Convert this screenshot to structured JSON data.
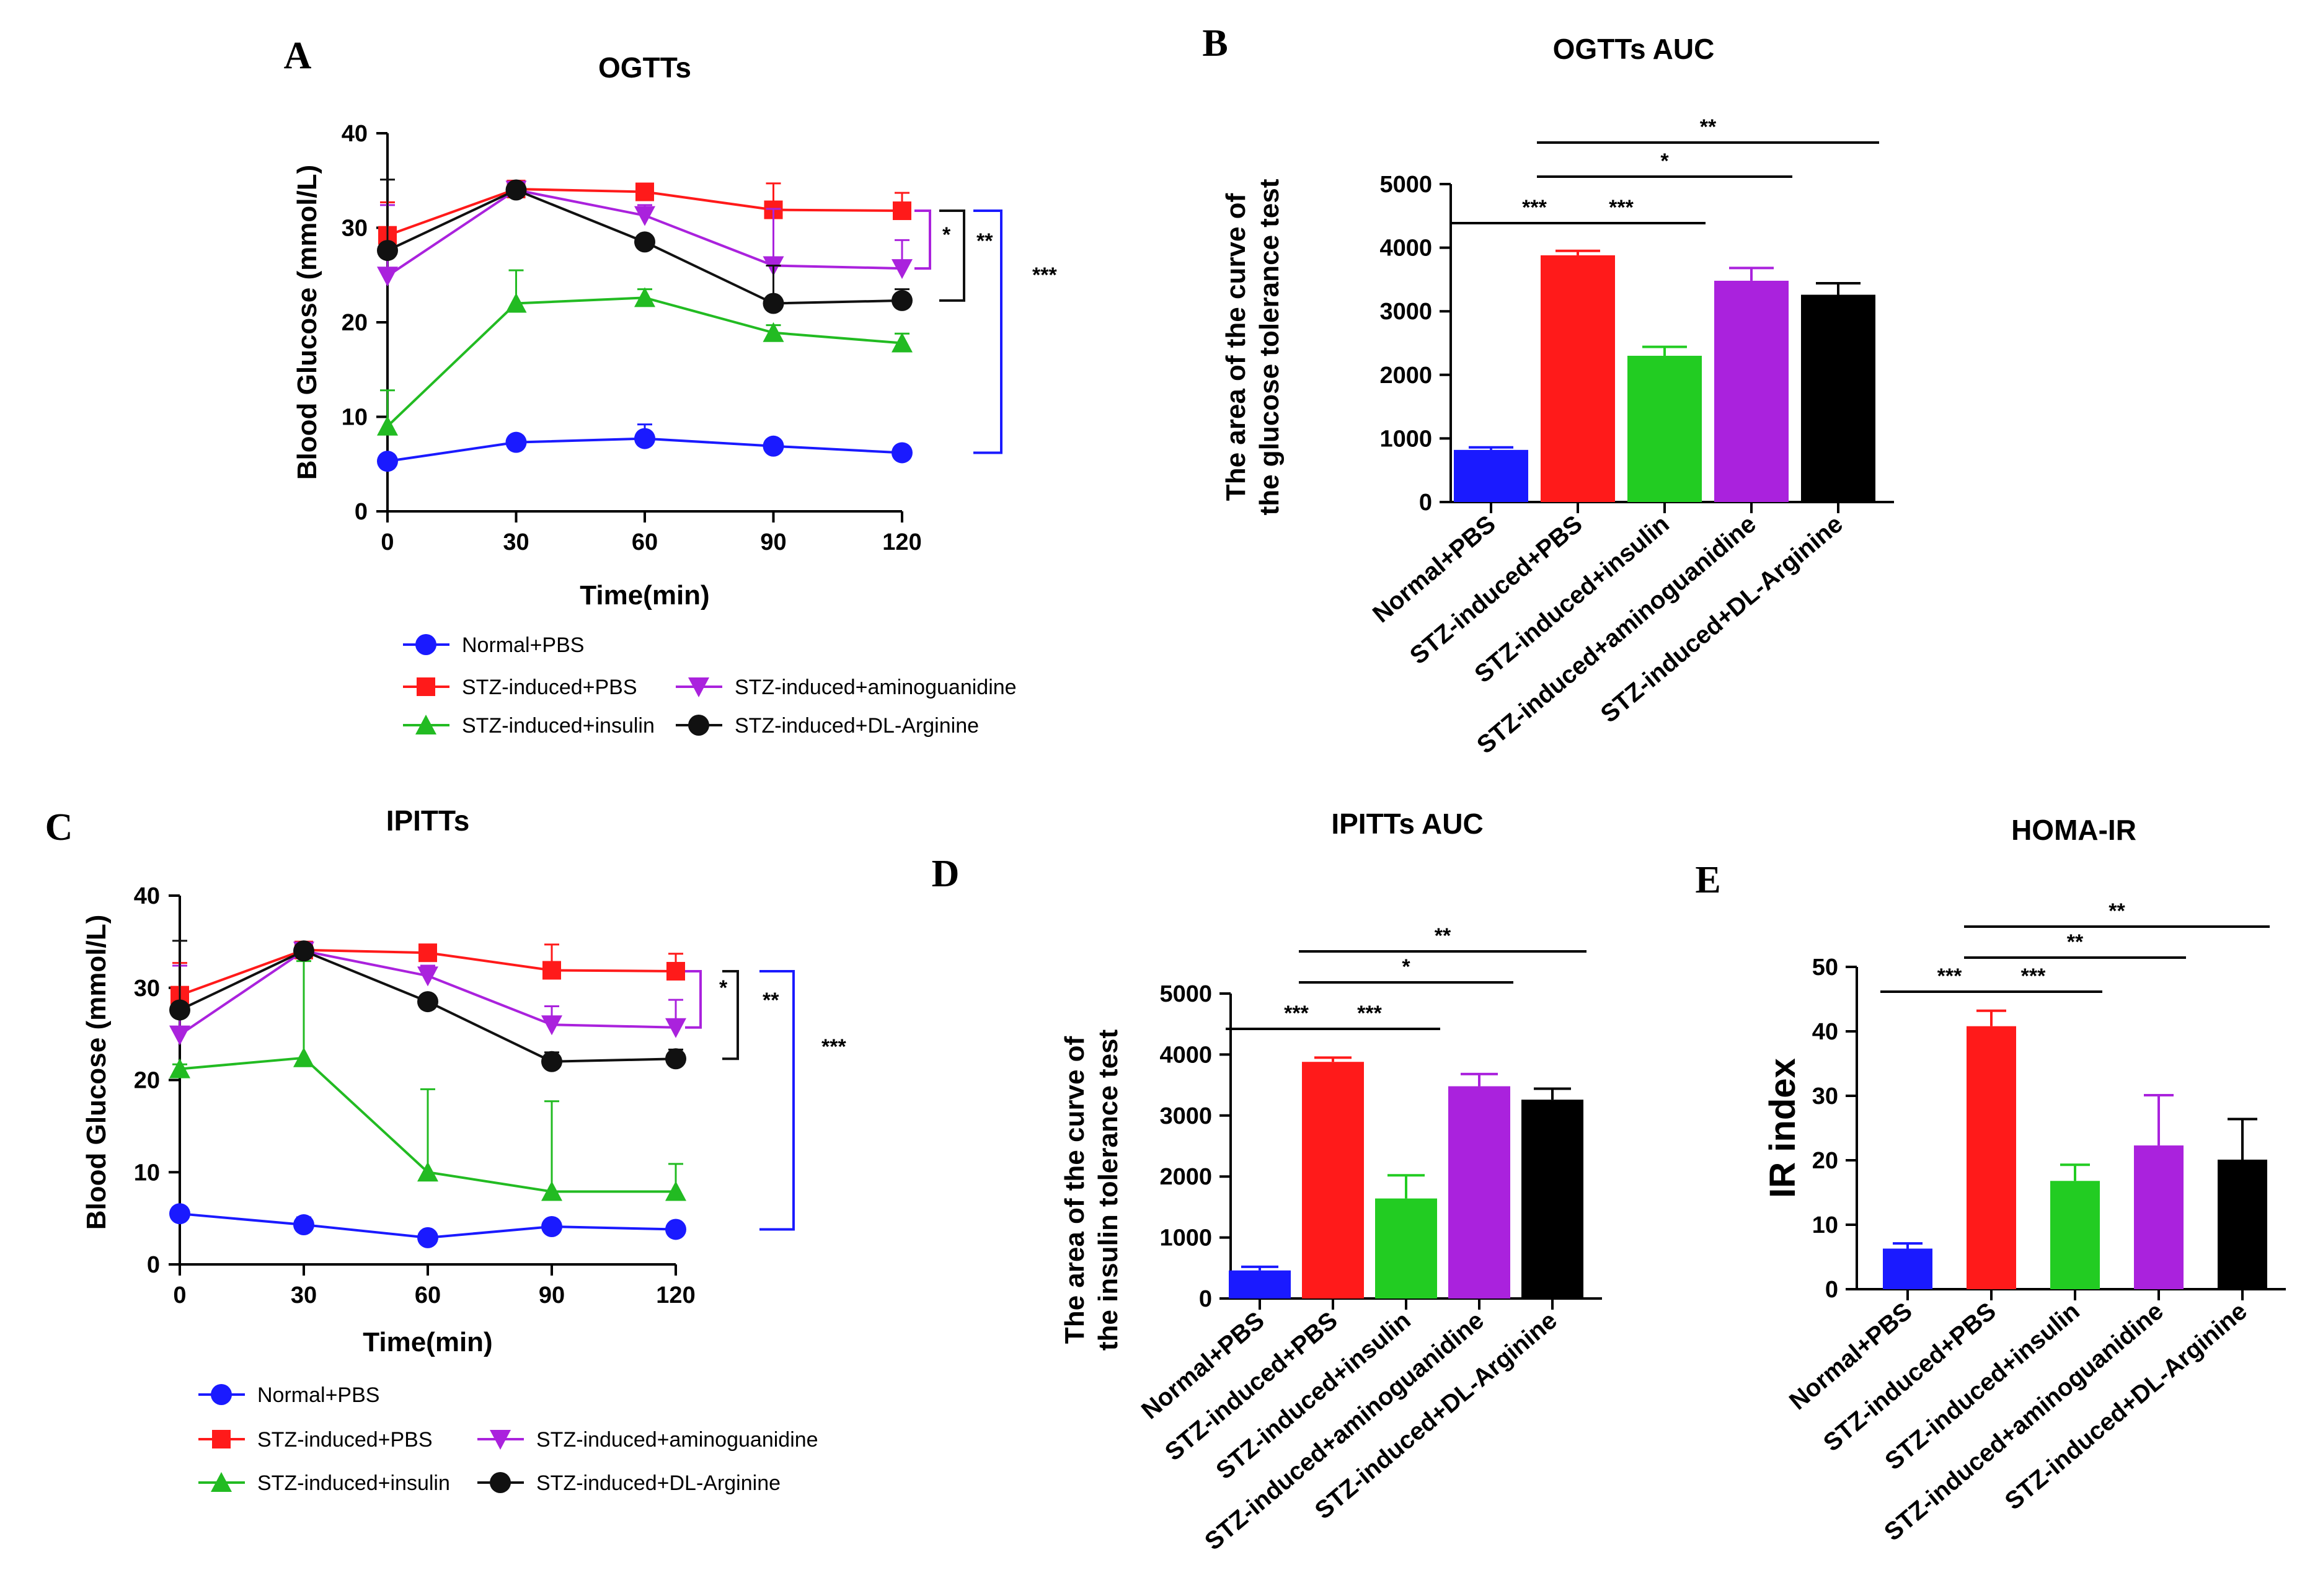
{
  "chart_data": [
    {
      "id": "A",
      "panel_label": "A",
      "type": "line",
      "title": "OGTTs",
      "xlabel": "Time(min)",
      "ylabel": "Blood Glucose (mmol/L)",
      "x": [
        0,
        30,
        60,
        90,
        120
      ],
      "xticks": [
        "0",
        "30",
        "60",
        "90",
        "120"
      ],
      "yticks": [
        "0",
        "10",
        "20",
        "30",
        "40"
      ],
      "xlim": [
        0,
        120
      ],
      "ylim": [
        0,
        40
      ],
      "series": [
        {
          "name": "Normal+PBS",
          "color": "#1a1aff",
          "marker": "circle",
          "values": [
            5.3,
            7.3,
            7.7,
            6.9,
            6.2
          ],
          "err": [
            0.6,
            0.5,
            1.5,
            0.6,
            0.5
          ]
        },
        {
          "name": "STZ-induced+PBS",
          "color": "#ff1a1a",
          "marker": "square",
          "values": [
            29.2,
            34.1,
            33.8,
            31.9,
            31.8
          ],
          "err": [
            3.5,
            0.6,
            0.5,
            2.8,
            1.9
          ]
        },
        {
          "name": "STZ-induced+insulin",
          "color": "#22bb22",
          "marker": "triangle",
          "values": [
            9.0,
            22.0,
            22.6,
            18.9,
            17.8
          ],
          "err": [
            3.8,
            3.5,
            0.9,
            0.8,
            1.0
          ]
        },
        {
          "name": "STZ-induced+aminoguanidine",
          "color": "#aa22dd",
          "marker": "triangle-down",
          "values": [
            24.9,
            34.0,
            31.3,
            26.0,
            25.7
          ],
          "err": [
            7.5,
            0.5,
            1.1,
            6.0,
            3.0
          ]
        },
        {
          "name": "STZ-induced+DL-Arginine",
          "color": "#111111",
          "marker": "circle",
          "values": [
            27.6,
            34.0,
            28.5,
            22.0,
            22.3
          ],
          "err": [
            7.5,
            0.5,
            0.6,
            4.0,
            1.2
          ]
        }
      ],
      "significance": [
        {
          "label": "*",
          "color": "#aa22dd"
        },
        {
          "label": "**",
          "color": "#111111"
        },
        {
          "label": "***",
          "color": "#1a1aff"
        }
      ]
    },
    {
      "id": "B",
      "panel_label": "B",
      "type": "bar",
      "title": "OGTTs AUC",
      "ylabel_lines": [
        "The area of the curve of",
        "the glucose tolerance test"
      ],
      "categories": [
        "Normal+PBS",
        "STZ-induced+PBS",
        "STZ-induced+insulin",
        "STZ-induced+aminoguanidine",
        "STZ-induced+DL-Arginine"
      ],
      "colors": [
        "#1a1aff",
        "#ff1a1a",
        "#22cc22",
        "#aa22dd",
        "#000000"
      ],
      "values": [
        820,
        3880,
        2300,
        3480,
        3260
      ],
      "err": [
        40,
        70,
        140,
        200,
        180
      ],
      "yticks": [
        "0",
        "1000",
        "2000",
        "3000",
        "4000",
        "5000"
      ],
      "ylim": [
        0,
        5000
      ],
      "significance": [
        {
          "label": "***"
        },
        {
          "label": "***"
        },
        {
          "label": "*"
        },
        {
          "label": "**"
        }
      ]
    },
    {
      "id": "C",
      "panel_label": "C",
      "type": "line",
      "title": "IPITTs",
      "xlabel": "Time(min)",
      "ylabel": "Blood Glucose (mmol/L)",
      "x": [
        0,
        30,
        60,
        90,
        120
      ],
      "xticks": [
        "0",
        "30",
        "60",
        "90",
        "120"
      ],
      "yticks": [
        "0",
        "10",
        "20",
        "30",
        "40"
      ],
      "xlim": [
        0,
        120
      ],
      "ylim": [
        0,
        40
      ],
      "series": [
        {
          "name": "Normal+PBS",
          "color": "#1a1aff",
          "marker": "circle",
          "values": [
            5.5,
            4.3,
            2.9,
            4.1,
            3.8
          ],
          "err": [
            0.5,
            0.8,
            0.6,
            0.5,
            0.5
          ]
        },
        {
          "name": "STZ-induced+PBS",
          "color": "#ff1a1a",
          "marker": "square",
          "values": [
            29.2,
            34.1,
            33.8,
            31.9,
            31.8
          ],
          "err": [
            3.5,
            0.6,
            0.5,
            2.8,
            1.9
          ]
        },
        {
          "name": "STZ-induced+insulin",
          "color": "#22bb22",
          "marker": "triangle",
          "values": [
            21.2,
            22.4,
            10.0,
            7.9,
            7.9
          ],
          "err": [
            0.5,
            10.5,
            9.0,
            9.8,
            3.0
          ]
        },
        {
          "name": "STZ-induced+aminoguanidine",
          "color": "#aa22dd",
          "marker": "triangle-down",
          "values": [
            24.9,
            34.0,
            31.3,
            26.0,
            25.7
          ],
          "err": [
            7.5,
            0.5,
            1.1,
            2.0,
            3.0
          ]
        },
        {
          "name": "STZ-induced+DL-Arginine",
          "color": "#111111",
          "marker": "circle",
          "values": [
            27.6,
            34.0,
            28.5,
            22.0,
            22.3
          ],
          "err": [
            7.5,
            0.5,
            0.6,
            1.0,
            1.0
          ]
        }
      ],
      "significance": [
        {
          "label": "*",
          "color": "#aa22dd"
        },
        {
          "label": "**",
          "color": "#111111"
        },
        {
          "label": "***",
          "color": "#1a1aff"
        }
      ]
    },
    {
      "id": "D",
      "panel_label": "D",
      "type": "bar",
      "title": "IPITTs AUC",
      "ylabel_lines": [
        "The area of the curve of",
        "the insulin tolerance test"
      ],
      "categories": [
        "Normal+PBS",
        "STZ-induced+PBS",
        "STZ-induced+insulin",
        "STZ-induced+aminoguanidine",
        "STZ-induced+DL-Arginine"
      ],
      "colors": [
        "#1a1aff",
        "#ff1a1a",
        "#22cc22",
        "#aa22dd",
        "#000000"
      ],
      "values": [
        460,
        3880,
        1640,
        3480,
        3260
      ],
      "err": [
        60,
        70,
        380,
        200,
        180
      ],
      "yticks": [
        "0",
        "1000",
        "2000",
        "3000",
        "4000",
        "5000"
      ],
      "ylim": [
        0,
        5000
      ],
      "significance": [
        {
          "label": "***"
        },
        {
          "label": "***"
        },
        {
          "label": "*"
        },
        {
          "label": "**"
        }
      ]
    },
    {
      "id": "E",
      "panel_label": "E",
      "type": "bar",
      "title": "HOMA-IR",
      "ylabel_lines": [
        "IR index"
      ],
      "categories": [
        "Normal+PBS",
        "STZ-induced+PBS",
        "STZ-induced+insulin",
        "STZ-induced+aminoguanidine",
        "STZ-induced+DL-Arginine"
      ],
      "colors": [
        "#1a1aff",
        "#ff1a1a",
        "#22cc22",
        "#aa22dd",
        "#000000"
      ],
      "values": [
        6.3,
        40.8,
        16.8,
        22.3,
        20.1
      ],
      "err": [
        0.8,
        2.4,
        2.5,
        7.8,
        6.3
      ],
      "yticks": [
        "0",
        "10",
        "20",
        "30",
        "40",
        "50"
      ],
      "ylim": [
        0,
        50
      ],
      "significance": [
        {
          "label": "***"
        },
        {
          "label": "***"
        },
        {
          "label": "**"
        },
        {
          "label": "**"
        }
      ]
    }
  ]
}
